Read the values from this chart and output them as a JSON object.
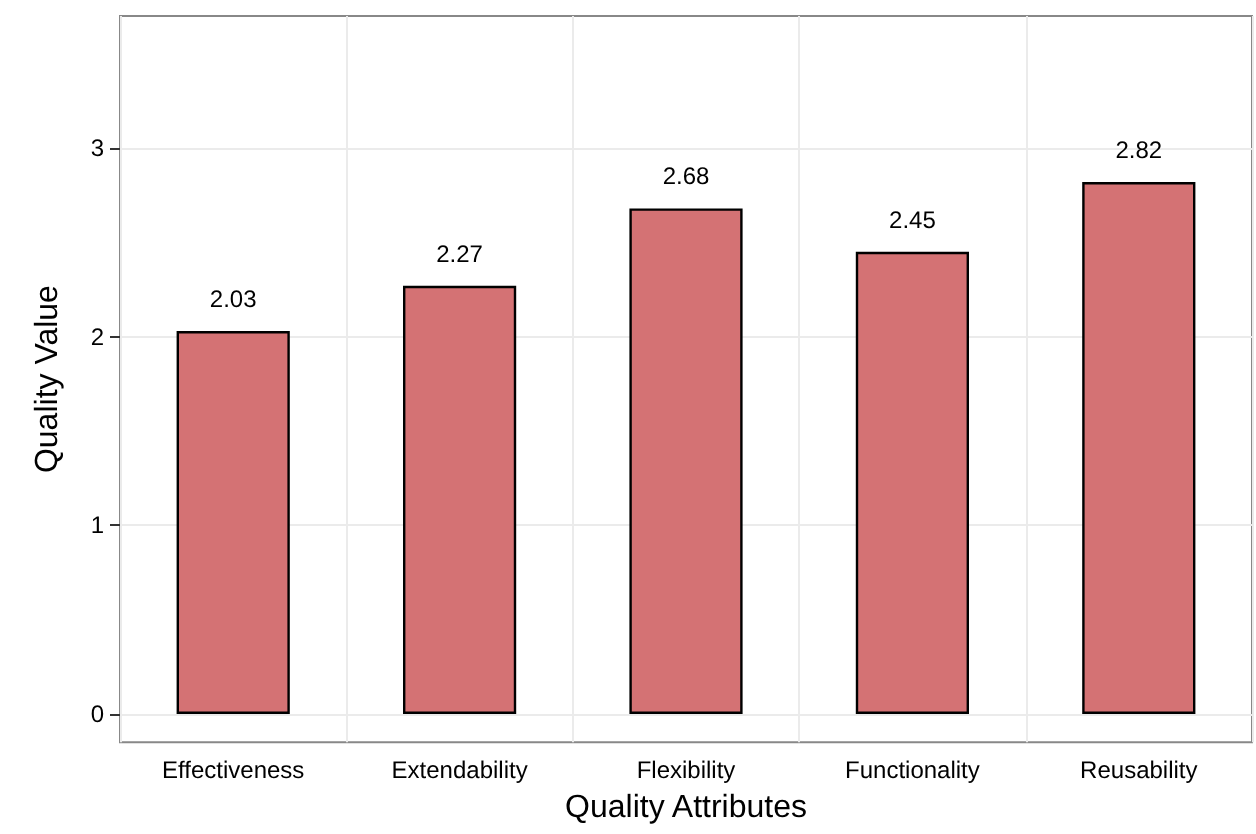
{
  "chart_data": {
    "type": "bar",
    "xlabel": "Quality Attributes",
    "ylabel": "Quality Value",
    "categories": [
      "Effectiveness",
      "Extendability",
      "Flexibility",
      "Functionality",
      "Reusability"
    ],
    "values": [
      2.03,
      2.27,
      2.68,
      2.45,
      2.82
    ],
    "color": "#d47274",
    "ylim": [
      -0.15,
      3.7
    ],
    "yticks": [
      0,
      1,
      2,
      3
    ],
    "grid": true,
    "data_labels": true
  }
}
